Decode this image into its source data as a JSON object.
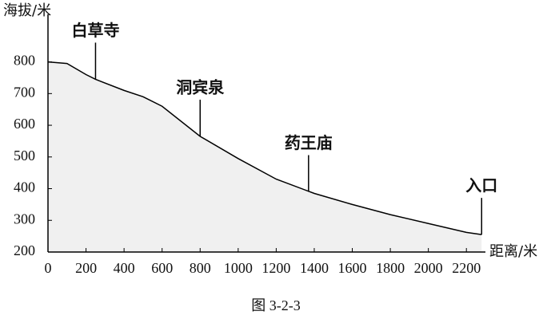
{
  "chart_data": {
    "type": "area",
    "title": "图 3-2-3",
    "y_label": "海拔/米",
    "x_label": "距离/米",
    "x": [
      0,
      100,
      200,
      250,
      400,
      500,
      600,
      800,
      1000,
      1200,
      1400,
      1600,
      1800,
      2000,
      2200,
      2280
    ],
    "values": [
      800,
      795,
      760,
      745,
      710,
      690,
      660,
      565,
      495,
      430,
      385,
      350,
      318,
      290,
      262,
      255
    ],
    "color": "#000000",
    "fill": "#f0f0f0",
    "xlim": [
      0,
      2300
    ],
    "ylim": [
      200,
      950
    ],
    "xticks": [
      0,
      200,
      400,
      600,
      800,
      1000,
      1200,
      1400,
      1600,
      1800,
      2000,
      2200
    ],
    "yticks": [
      200,
      300,
      400,
      500,
      600,
      700,
      800
    ],
    "grid": false,
    "annotations": [
      {
        "text": "白草寺",
        "x": 250,
        "y": 745
      },
      {
        "text": "洞宾泉",
        "x": 800,
        "y": 565
      },
      {
        "text": "药王庙",
        "x": 1370,
        "y": 390
      },
      {
        "text": "入口",
        "x": 2280,
        "y": 255
      }
    ]
  }
}
